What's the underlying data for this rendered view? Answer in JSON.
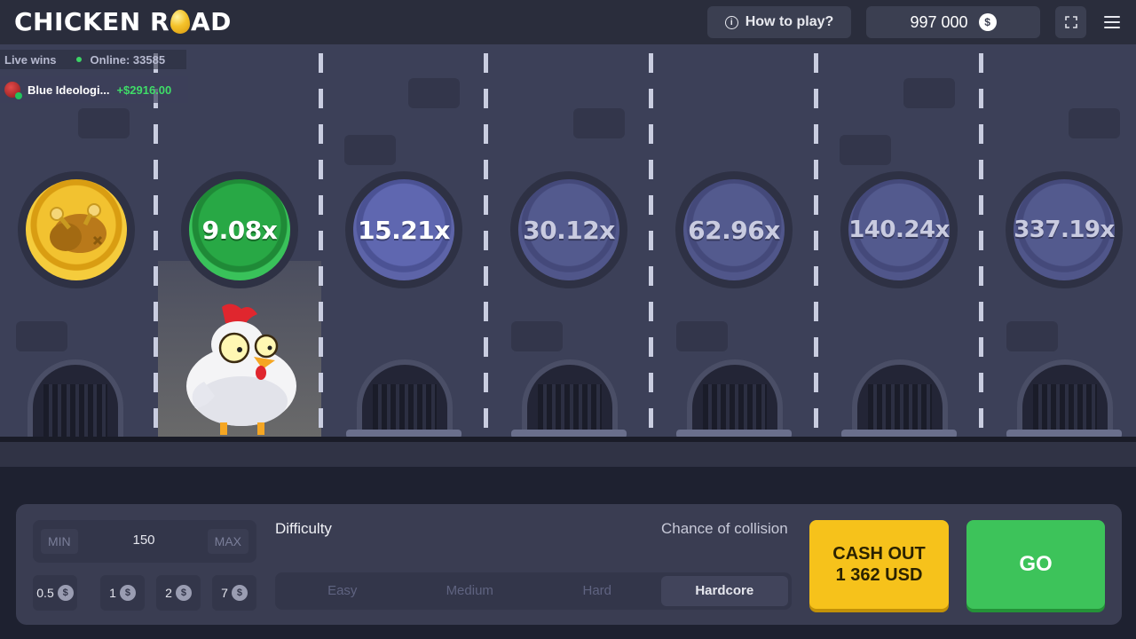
{
  "header": {
    "logo_left": "CHICKEN R",
    "logo_right": "AD",
    "how_to_play": "How to play?",
    "balance": "997 000",
    "currency_glyph": "$"
  },
  "live": {
    "label": "Live wins",
    "online": "Online: 33585",
    "last_win_user": "Blue Ideologi...",
    "last_win_amount": "+$2916.00"
  },
  "lanes": {
    "multipliers": [
      "9.08x",
      "15.21x",
      "30.12x",
      "62.96x",
      "140.24x",
      "337.19x"
    ]
  },
  "bet": {
    "min_label": "MIN",
    "value": "150",
    "max_label": "MAX",
    "chips": [
      "0.5",
      "1",
      "2",
      "7"
    ]
  },
  "difficulty": {
    "label": "Difficulty",
    "collision_label": "Chance of collision",
    "options": [
      "Easy",
      "Medium",
      "Hard",
      "Hardcore"
    ],
    "selected": "Hardcore"
  },
  "actions": {
    "cashout_line1": "CASH OUT",
    "cashout_line2": "1 362 USD",
    "go": "GO"
  },
  "colors": {
    "accent_gold": "#f6c21b",
    "accent_green": "#3dc35a",
    "background": "#3c4058"
  }
}
